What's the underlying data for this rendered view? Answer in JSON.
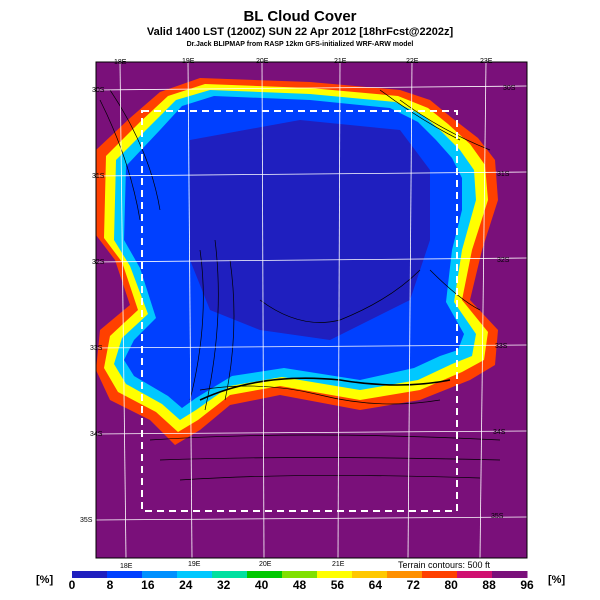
{
  "title": "BL Cloud Cover",
  "subtitle": "Valid 1400 LST (1200Z) SUN 22 Apr 2012 [18hrFcst@2202z]",
  "source_line": "Dr.Jack BLIPMAP from RASP 12km GFS-initialized WRF-ARW model",
  "terrain_note": "Terrain contours: 500 ft",
  "units_left": "[%]",
  "units_right": "[%]",
  "colorbar": {
    "labels": [
      "0",
      "8",
      "16",
      "24",
      "32",
      "40",
      "48",
      "56",
      "64",
      "72",
      "80",
      "88",
      "96"
    ],
    "colors": [
      "#1f1fbf",
      "#0040ff",
      "#0090ff",
      "#00c8ff",
      "#00e0a0",
      "#00c800",
      "#80e000",
      "#ffff00",
      "#ffc800",
      "#ff9000",
      "#ff4000",
      "#d01070",
      "#7a107a"
    ]
  },
  "longitude_labels_top": [
    "18E",
    "19E",
    "20E",
    "21E",
    "22E",
    "23E"
  ],
  "longitude_labels_bottom": [
    "18E",
    "19E",
    "20E",
    "21E"
  ],
  "latitude_labels_left": [
    "30S",
    "31S",
    "32S",
    "33S",
    "34S",
    "35S"
  ],
  "latitude_labels_right": [
    "30S",
    "31S",
    "32S",
    "33S",
    "34S",
    "35S"
  ]
}
